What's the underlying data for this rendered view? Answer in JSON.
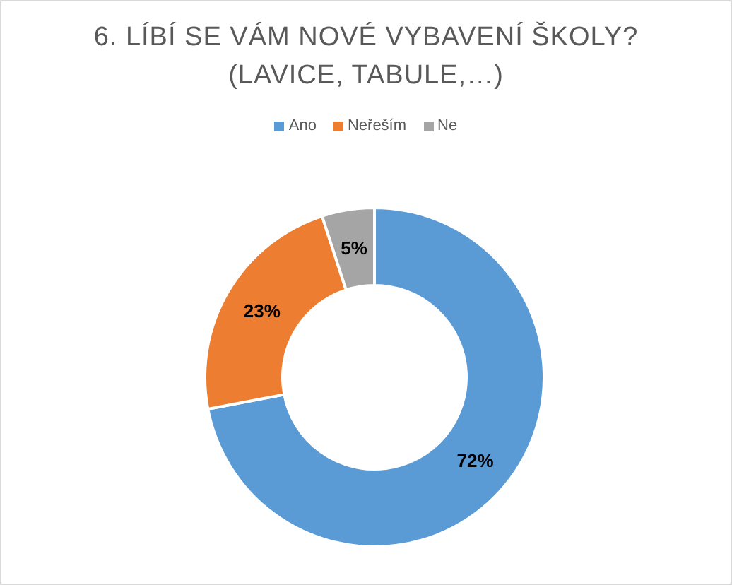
{
  "chart_data": {
    "type": "donut",
    "title": "6. LÍBÍ SE VÁM NOVÉ VYBAVENÍ ŠKOLY? (LAVICE, TABULE,…)",
    "categories": [
      "Ano",
      "Neřeším",
      "Ne"
    ],
    "values": [
      72,
      23,
      5
    ],
    "colors": [
      "#5b9bd5",
      "#ed7d31",
      "#a5a5a5"
    ],
    "value_labels": [
      "72%",
      "23%",
      "5%"
    ],
    "legend": "top"
  }
}
